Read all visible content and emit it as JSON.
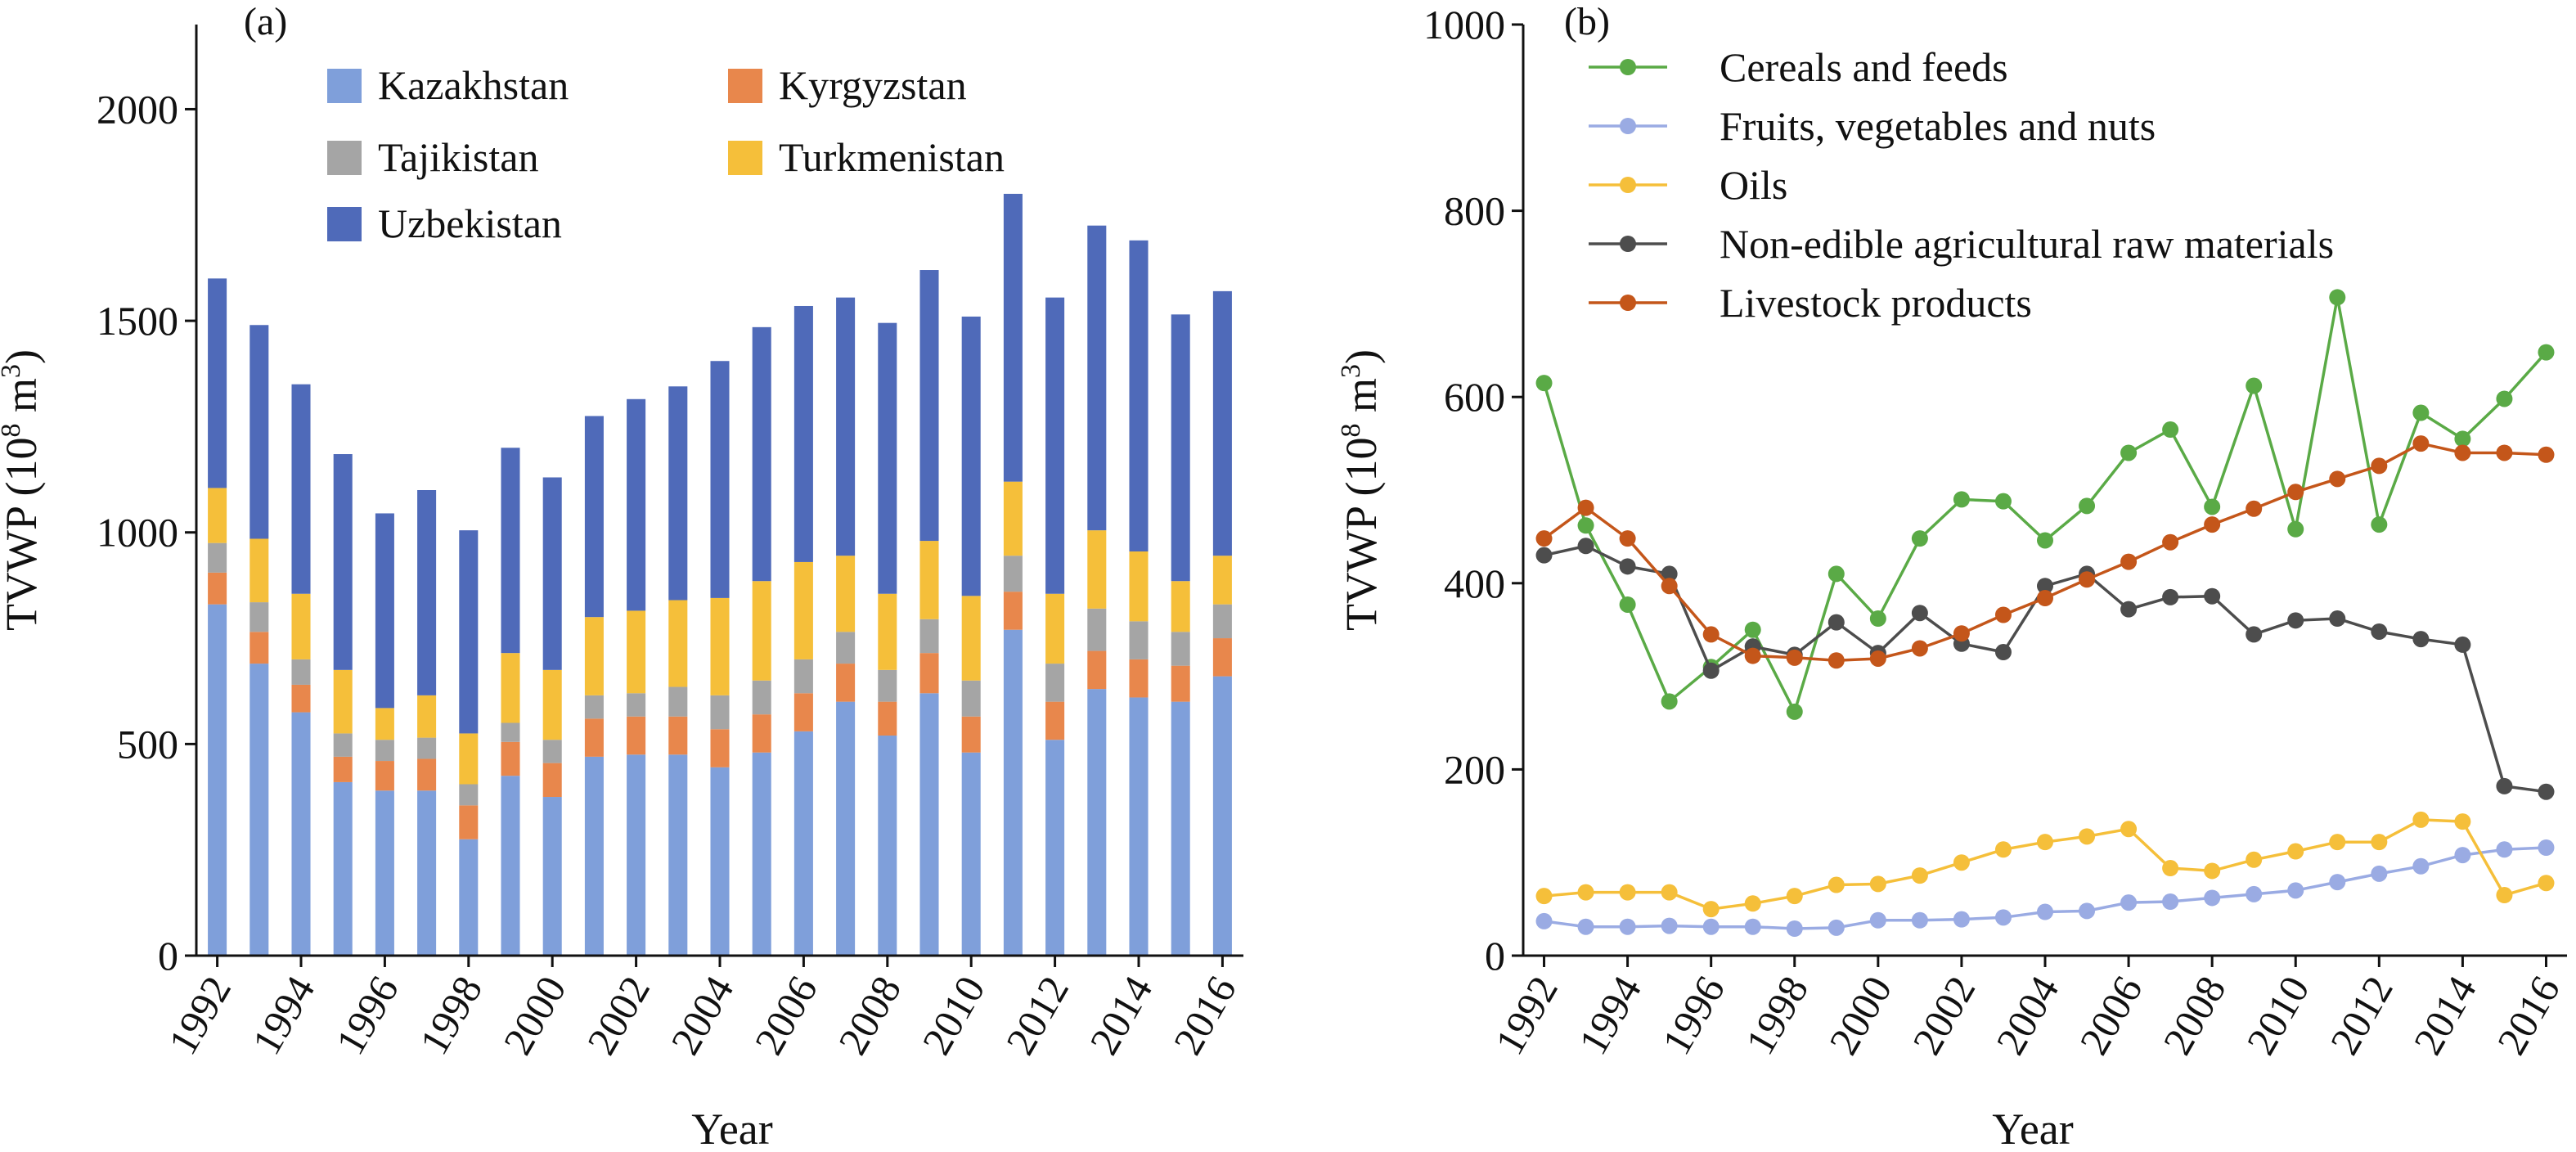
{
  "chart_data": [
    {
      "type": "bar",
      "stacked": true,
      "panel_label": "(a)",
      "xlabel": "Year",
      "ylabel": "TVWP (10",
      "ylabel_sup": "8",
      "ylabel_unit": " m",
      "ylabel_unit_sup": "3",
      "ylabel_close": ")",
      "ylim": [
        0,
        2200
      ],
      "yticks": [
        0,
        500,
        1000,
        1500,
        2000
      ],
      "xticks": [
        "1992",
        "1994",
        "1996",
        "1998",
        "2000",
        "2002",
        "2004",
        "2006",
        "2008",
        "2010",
        "2012",
        "2014",
        "2016"
      ],
      "legend_position": "top-center",
      "grid": false,
      "categories": [
        "1992",
        "1993",
        "1994",
        "1995",
        "1996",
        "1997",
        "1998",
        "1999",
        "2000",
        "2001",
        "2002",
        "2003",
        "2004",
        "2005",
        "2006",
        "2007",
        "2008",
        "2009",
        "2010",
        "2011",
        "2012",
        "2013",
        "2014",
        "2015",
        "2016"
      ],
      "series": [
        {
          "name": "Kazakhstan",
          "color": "#7f9fda",
          "values": [
            830,
            690,
            575,
            410,
            390,
            390,
            275,
            425,
            375,
            470,
            475,
            475,
            445,
            480,
            530,
            600,
            520,
            620,
            480,
            770,
            510,
            630,
            610,
            600,
            660
          ]
        },
        {
          "name": "Kyrgyzstan",
          "color": "#e8874c",
          "values": [
            75,
            75,
            65,
            60,
            70,
            75,
            80,
            80,
            80,
            90,
            90,
            90,
            90,
            90,
            90,
            90,
            80,
            95,
            85,
            90,
            90,
            90,
            90,
            85,
            90
          ]
        },
        {
          "name": "Tajikistan",
          "color": "#a5a5a5",
          "values": [
            70,
            70,
            60,
            55,
            50,
            50,
            50,
            45,
            55,
            55,
            55,
            70,
            80,
            80,
            80,
            75,
            75,
            80,
            85,
            85,
            90,
            100,
            90,
            80,
            80
          ]
        },
        {
          "name": "Turkmenistan",
          "color": "#f5bf3a",
          "values": [
            130,
            150,
            155,
            150,
            75,
            100,
            120,
            165,
            165,
            185,
            195,
            205,
            230,
            235,
            230,
            180,
            180,
            185,
            200,
            175,
            165,
            185,
            165,
            120,
            115
          ]
        },
        {
          "name": "Uzbekistan",
          "color": "#4f6ab9",
          "values": [
            495,
            505,
            495,
            510,
            460,
            485,
            480,
            485,
            455,
            475,
            500,
            505,
            560,
            600,
            605,
            610,
            640,
            640,
            660,
            680,
            700,
            720,
            735,
            630,
            625
          ]
        }
      ]
    },
    {
      "type": "line",
      "panel_label": "(b)",
      "xlabel": "Year",
      "ylabel": "TVWP (10",
      "ylabel_sup": "8",
      "ylabel_unit": " m",
      "ylabel_unit_sup": "3",
      "ylabel_close": ")",
      "ylim": [
        0,
        1000
      ],
      "yticks": [
        0,
        200,
        400,
        600,
        800,
        1000
      ],
      "xticks": [
        "1992",
        "1994",
        "1996",
        "1998",
        "2000",
        "2002",
        "2004",
        "2006",
        "2008",
        "2010",
        "2012",
        "2014",
        "2016"
      ],
      "legend_position": "top-right",
      "grid": false,
      "x": [
        1992,
        1993,
        1994,
        1995,
        1996,
        1997,
        1998,
        1999,
        2000,
        2001,
        2002,
        2003,
        2004,
        2005,
        2006,
        2007,
        2008,
        2009,
        2010,
        2011,
        2012,
        2013,
        2014,
        2015,
        2016
      ],
      "series": [
        {
          "name": "Cereals and feeds",
          "color": "#5aaa46",
          "values": [
            615,
            462,
            377,
            273,
            310,
            350,
            262,
            410,
            362,
            448,
            490,
            488,
            446,
            483,
            540,
            565,
            482,
            612,
            458,
            707,
            463,
            583,
            555,
            598,
            648
          ]
        },
        {
          "name": "Fruits, vegetables and nuts",
          "color": "#9aabe3",
          "values": [
            37,
            31,
            31,
            32,
            31,
            31,
            29,
            30,
            38,
            38,
            39,
            41,
            47,
            48,
            57,
            58,
            62,
            66,
            70,
            79,
            88,
            96,
            108,
            114,
            116
          ]
        },
        {
          "name": "Oils",
          "color": "#f5bf3a",
          "values": [
            64,
            68,
            68,
            68,
            50,
            56,
            64,
            76,
            77,
            86,
            100,
            114,
            122,
            128,
            136,
            94,
            91,
            103,
            112,
            122,
            122,
            146,
            144,
            65,
            78
          ]
        },
        {
          "name": "Non-edible agricultural raw materials",
          "color": "#4d4d4d",
          "values": [
            430,
            440,
            418,
            410,
            306,
            332,
            323,
            358,
            325,
            368,
            335,
            326,
            397,
            410,
            372,
            385,
            386,
            345,
            360,
            362,
            348,
            340,
            334,
            182,
            176
          ]
        },
        {
          "name": "Livestock products",
          "color": "#c4561a",
          "values": [
            448,
            481,
            448,
            397,
            345,
            322,
            320,
            317,
            319,
            330,
            346,
            366,
            384,
            404,
            423,
            444,
            463,
            480,
            498,
            512,
            526,
            550,
            540,
            540,
            538
          ]
        }
      ]
    }
  ]
}
